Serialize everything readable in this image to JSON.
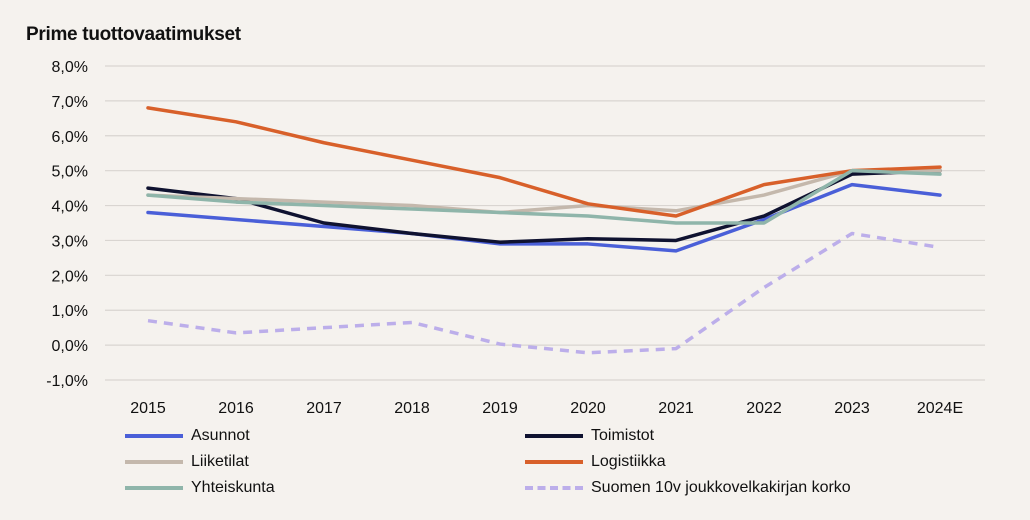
{
  "chart_data": {
    "type": "line",
    "title": "Prime tuottovaatimukset",
    "categories": [
      "2015",
      "2016",
      "2017",
      "2018",
      "2019",
      "2020",
      "2021",
      "2022",
      "2023",
      "2024E"
    ],
    "ylim": [
      -1,
      8
    ],
    "yticks": [
      -1,
      0,
      1,
      2,
      3,
      4,
      5,
      6,
      7,
      8
    ],
    "ytick_labels": [
      "-1,0%",
      "0,0%",
      "1,0%",
      "2,0%",
      "3,0%",
      "4,0%",
      "5,0%",
      "6,0%",
      "7,0%",
      "8,0%"
    ],
    "grid": true,
    "legend_position": "bottom",
    "series": [
      {
        "name": "Asunnot",
        "color": "#4a5fd8",
        "dash": false,
        "values": [
          3.8,
          3.6,
          3.4,
          3.2,
          2.9,
          2.9,
          2.7,
          3.6,
          4.6,
          4.3
        ]
      },
      {
        "name": "Toimistot",
        "color": "#0f1230",
        "dash": false,
        "values": [
          4.5,
          4.2,
          3.5,
          3.2,
          2.95,
          3.05,
          3.0,
          3.7,
          4.9,
          5.0
        ]
      },
      {
        "name": "Liiketilat",
        "color": "#c4b8ac",
        "dash": false,
        "values": [
          4.3,
          4.2,
          4.1,
          4.0,
          3.8,
          4.0,
          3.85,
          4.3,
          5.0,
          5.0
        ]
      },
      {
        "name": "Logistiikka",
        "color": "#d8602a",
        "dash": false,
        "values": [
          6.8,
          6.4,
          5.8,
          5.3,
          4.8,
          4.05,
          3.7,
          4.6,
          5.0,
          5.1
        ]
      },
      {
        "name": "Yhteiskunta",
        "color": "#8fb5aa",
        "dash": false,
        "values": [
          4.3,
          4.1,
          4.0,
          3.9,
          3.8,
          3.7,
          3.5,
          3.5,
          5.0,
          4.9
        ]
      },
      {
        "name": "Suomen 10v joukkovelkakirjan korko",
        "color": "#bcaeea",
        "dash": true,
        "values": [
          0.7,
          0.35,
          0.5,
          0.65,
          0.03,
          -0.22,
          -0.1,
          1.65,
          3.2,
          2.8
        ]
      }
    ]
  }
}
